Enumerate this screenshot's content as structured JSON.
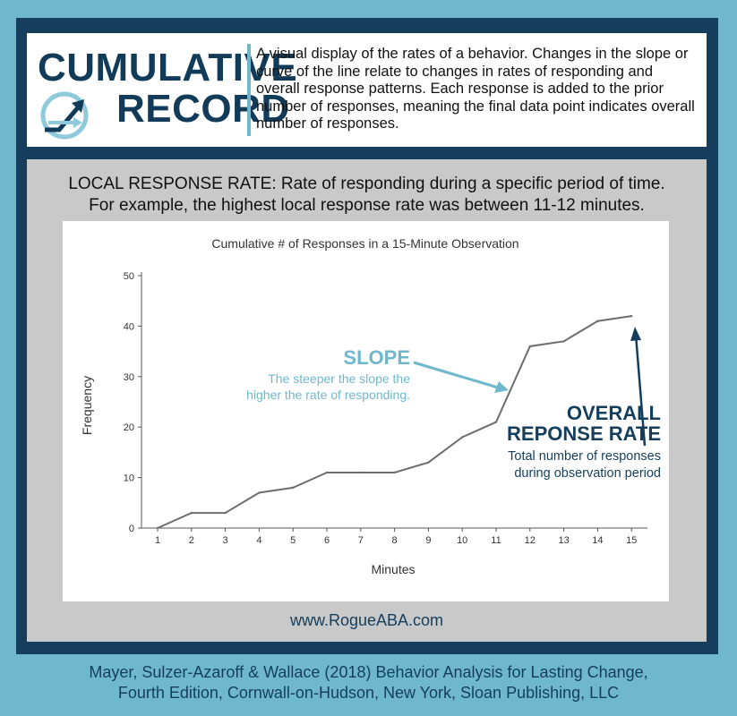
{
  "header": {
    "logo_line1": "CUMULATIVE",
    "logo_line2": "RECORD",
    "logo_icon": "trend-arrow-icon",
    "description": "A visual display of the rates of a behavior. Changes in the slope or curve of the line relate to changes in rates of responding and overall response patterns. Each response is added to the prior number of responses, meaning the final data point indicates overall number of responses."
  },
  "local_rate": {
    "line1": "LOCAL RESPONSE RATE:  Rate of responding during a specific period of time.",
    "line2": "For example, the highest local response rate was between 11-12 minutes."
  },
  "annotations": {
    "slope_title": "SLOPE",
    "slope_text1": "The steeper the slope the",
    "slope_text2": "higher the rate of responding.",
    "overall_title1": "OVERALL",
    "overall_title2": "REPONSE RATE",
    "overall_text1": "Total number of responses",
    "overall_text2": "during observation period"
  },
  "website": "www.RogueABA.com",
  "citation": {
    "line1": "Mayer, Sulzer-Azaroff & Wallace (2018) Behavior Analysis for Lasting Change,",
    "line2": "Fourth Edition, Cornwall-on-Hudson, New York, Sloan Publishing, LLC"
  },
  "colors": {
    "navy": "#143e5c",
    "teal": "#6fb8cc",
    "line": "#6d6d6d"
  },
  "chart_data": {
    "type": "line",
    "title": "Cumulative # of Responses in a 15-Minute Observation",
    "xlabel": "Minutes",
    "ylabel": "Frequency",
    "x": [
      1,
      2,
      3,
      4,
      5,
      6,
      7,
      8,
      9,
      10,
      11,
      12,
      13,
      14,
      15
    ],
    "series": [
      {
        "values": [
          0,
          3,
          3,
          7,
          8,
          11,
          11,
          11,
          13,
          18,
          21,
          36,
          37,
          41,
          42
        ]
      }
    ],
    "yticks": [
      0,
      10,
      20,
      30,
      40,
      50
    ],
    "ylim": [
      0,
      50
    ],
    "grid": false
  }
}
